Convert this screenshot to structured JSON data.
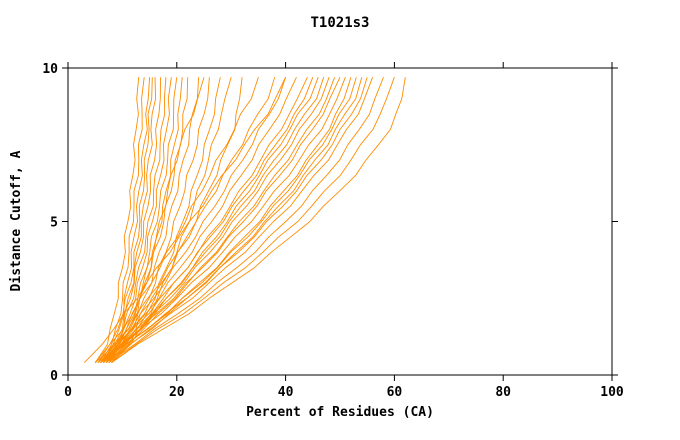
{
  "chart_data": {
    "type": "line",
    "title": "T1021s3",
    "xlabel": "Percent of Residues (CA)",
    "ylabel": "Distance Cutoff, A",
    "xlim": [
      0,
      100
    ],
    "ylim": [
      0,
      10
    ],
    "x_ticks": [
      0,
      20,
      40,
      60,
      80,
      100
    ],
    "y_ticks": [
      0,
      5,
      10
    ],
    "grid": false,
    "legend": "none",
    "line_color": "#ff8c00",
    "axis_color": "#000000",
    "background": "#ffffff",
    "y_cutoffs": [
      0.4,
      1,
      1.5,
      2,
      2.5,
      3,
      3.5,
      4,
      4.5,
      5,
      5.5,
      6,
      6.5,
      7,
      7.5,
      8,
      8.5,
      9,
      9.7
    ],
    "series": [
      [
        5,
        7,
        8,
        8.5,
        9,
        9.5,
        10,
        10.3,
        10.6,
        11,
        11.3,
        11.6,
        11.9,
        12.1,
        12.3,
        12.5,
        12.7,
        12.9,
        13
      ],
      [
        6,
        8,
        9,
        9.5,
        10,
        10.4,
        10.8,
        11.2,
        11.5,
        11.8,
        12.1,
        12.4,
        12.7,
        13,
        13.2,
        13.4,
        13.6,
        13.8,
        14
      ],
      [
        6.5,
        8.5,
        9.5,
        10,
        10.5,
        11,
        11.4,
        11.8,
        12.2,
        12.5,
        12.8,
        13.1,
        13.4,
        13.7,
        14,
        14.3,
        14.5,
        14.8,
        15
      ],
      [
        5.5,
        8,
        9,
        10,
        10.8,
        11.4,
        12,
        12.4,
        12.8,
        13.1,
        13.4,
        13.7,
        14,
        14.3,
        14.5,
        14.8,
        15,
        15.2,
        15.5
      ],
      [
        7,
        9,
        10,
        10.6,
        11.2,
        11.8,
        12.3,
        12.8,
        13.2,
        13.6,
        14,
        14.3,
        14.6,
        14.9,
        15.2,
        15.4,
        15.6,
        15.8,
        16
      ],
      [
        6,
        8.5,
        9.8,
        10.6,
        11.4,
        12,
        12.6,
        13.2,
        13.7,
        14.2,
        14.6,
        15,
        15.4,
        15.8,
        16.1,
        16.4,
        16.6,
        16.8,
        17
      ],
      [
        7,
        9,
        10.2,
        11,
        11.8,
        12.5,
        13.2,
        13.8,
        14.4,
        14.9,
        15.4,
        15.8,
        16.2,
        16.6,
        17,
        17.3,
        17.5,
        17.8,
        18
      ],
      [
        6.5,
        9,
        10.5,
        11.4,
        12.2,
        13,
        13.7,
        14.3,
        14.9,
        15.5,
        16,
        16.5,
        17,
        17.4,
        17.8,
        18.1,
        18.4,
        18.7,
        19
      ],
      [
        7,
        9.5,
        11,
        12,
        12.8,
        13.6,
        14.3,
        15,
        15.6,
        16.2,
        16.8,
        17.3,
        17.8,
        18.3,
        18.7,
        19.1,
        19.4,
        19.7,
        20
      ],
      [
        7.5,
        10,
        11.5,
        12.5,
        13.4,
        14.2,
        15,
        15.7,
        16.4,
        17,
        17.6,
        18.1,
        18.6,
        19.1,
        19.6,
        20,
        20.4,
        20.7,
        21
      ],
      [
        6,
        9,
        11,
        12.3,
        13.4,
        14.3,
        15.2,
        16,
        16.8,
        17.5,
        18.2,
        18.8,
        19.4,
        20,
        20.5,
        21,
        21.4,
        21.7,
        22
      ],
      [
        7,
        10,
        11.8,
        13,
        14.1,
        15.1,
        16,
        16.9,
        17.7,
        18.5,
        19.2,
        19.9,
        20.6,
        21.3,
        21.9,
        22.5,
        23,
        23.5,
        24
      ],
      [
        7.5,
        10.5,
        12.3,
        13.6,
        14.8,
        15.9,
        16.9,
        17.9,
        18.8,
        19.7,
        20.5,
        21.3,
        22.1,
        22.9,
        23.6,
        24.3,
        24.9,
        25.5,
        26
      ],
      [
        6,
        9,
        10.8,
        12,
        13,
        13.9,
        14.7,
        15.5,
        16.3,
        17,
        17.7,
        18.4,
        19.1,
        19.8,
        20.7,
        21.7,
        22.8,
        23.9,
        25
      ],
      [
        8,
        11,
        13,
        14.5,
        15.8,
        17,
        18.1,
        19.2,
        20.2,
        21.1,
        22,
        22.9,
        23.7,
        24.5,
        25.3,
        26,
        26.7,
        27.4,
        28
      ],
      [
        8,
        11.5,
        13.5,
        15,
        16.4,
        17.7,
        18.9,
        20,
        21.1,
        22.1,
        23.1,
        24,
        24.9,
        25.8,
        26.6,
        27.4,
        28.2,
        29.1,
        30
      ],
      [
        6,
        9.5,
        11.8,
        13.8,
        15.6,
        17.3,
        18.9,
        20.4,
        21.9,
        23.3,
        24.6,
        25.9,
        27.1,
        28.3,
        29.4,
        30.4,
        31.1,
        31.6,
        32
      ],
      [
        5,
        8,
        10,
        11.8,
        13.5,
        15.2,
        16.8,
        18.4,
        20,
        21.5,
        23,
        24.5,
        26,
        27.5,
        29,
        30.5,
        32,
        33.5,
        35
      ],
      [
        5.5,
        8.5,
        10.8,
        12.8,
        14.8,
        16.7,
        18.5,
        20.3,
        22,
        23.7,
        25.4,
        27,
        28.6,
        30.2,
        31.8,
        33.4,
        35,
        36.5,
        38
      ],
      [
        6,
        9,
        11.5,
        13.6,
        15.7,
        17.7,
        19.6,
        21.5,
        23.3,
        25.1,
        26.9,
        28.6,
        30.3,
        32,
        33.7,
        35.3,
        36.9,
        38.5,
        40
      ],
      [
        3,
        6,
        8.5,
        10.5,
        12.5,
        14.5,
        16.5,
        18.5,
        20.5,
        22.5,
        24.5,
        26.5,
        28.5,
        30.5,
        32.5,
        34.5,
        36.5,
        38.2,
        40
      ],
      [
        6,
        9.5,
        12,
        14.3,
        16.5,
        18.6,
        20.6,
        22.6,
        24.5,
        26.4,
        28.2,
        30,
        31.8,
        33.6,
        35.3,
        37,
        38.7,
        40.4,
        42
      ],
      [
        6.5,
        10,
        12.8,
        15.2,
        17.5,
        19.7,
        21.8,
        23.9,
        25.9,
        27.9,
        29.8,
        31.7,
        33.6,
        35.4,
        37.2,
        39,
        40.7,
        42.4,
        44
      ],
      [
        5,
        9,
        12,
        14.6,
        17.1,
        19.5,
        21.8,
        24,
        26.2,
        28.3,
        30.4,
        32.4,
        34.4,
        36.3,
        38.2,
        40,
        41.8,
        43.5,
        45
      ],
      [
        7,
        10.5,
        13.4,
        15.9,
        18.3,
        20.6,
        22.8,
        25,
        27.1,
        29.2,
        31.2,
        33.2,
        35.1,
        37,
        38.9,
        40.7,
        42.5,
        44.3,
        46
      ],
      [
        6,
        10,
        13,
        15.7,
        18.2,
        20.7,
        23.1,
        25.4,
        27.6,
        29.8,
        31.9,
        34,
        36,
        38,
        39.9,
        41.8,
        43.6,
        45.4,
        47
      ],
      [
        6.5,
        10.2,
        13.3,
        16,
        18.7,
        21.2,
        23.6,
        26,
        28.3,
        30.5,
        32.7,
        34.8,
        36.9,
        38.9,
        40.9,
        42.8,
        44.6,
        46.4,
        48
      ],
      [
        7,
        10.8,
        14,
        16.8,
        19.5,
        22.1,
        24.6,
        27,
        29.4,
        31.7,
        33.9,
        36.1,
        38.2,
        40.2,
        42.2,
        44.1,
        45.9,
        47.6,
        49
      ],
      [
        5.5,
        9.5,
        13,
        16.2,
        19.2,
        22,
        24.7,
        27.3,
        29.8,
        32.2,
        34.5,
        36.7,
        38.9,
        41,
        43,
        44.9,
        46.7,
        48.4,
        50
      ],
      [
        6,
        10,
        13.6,
        16.9,
        20,
        22.9,
        25.7,
        28.4,
        31,
        33.5,
        35.9,
        38.2,
        40.4,
        42.5,
        44.5,
        46.4,
        48.1,
        49.7,
        51
      ],
      [
        7,
        11,
        14.6,
        18,
        21.2,
        24.2,
        27.1,
        29.9,
        32.5,
        35,
        37.4,
        39.7,
        41.9,
        44,
        46,
        47.8,
        49.4,
        50.8,
        52
      ],
      [
        6.5,
        10.8,
        14.5,
        18,
        21.3,
        24.4,
        27.4,
        30.2,
        32.9,
        35.5,
        38,
        40.3,
        42.5,
        44.6,
        46.6,
        48.4,
        50.1,
        51.6,
        53
      ],
      [
        7.5,
        11.5,
        15.2,
        18.7,
        22,
        25.1,
        28.1,
        31,
        33.7,
        36.3,
        38.8,
        41.2,
        43.4,
        45.5,
        47.5,
        49.3,
        51,
        52.6,
        54
      ],
      [
        6,
        10.5,
        14.5,
        18.2,
        21.7,
        25,
        28.2,
        31.2,
        34.1,
        36.8,
        39.4,
        41.9,
        44.2,
        46.4,
        48.4,
        50.3,
        52,
        53.6,
        55
      ],
      [
        7,
        11.2,
        15.2,
        19,
        22.6,
        26,
        29.2,
        32.3,
        35.2,
        38,
        40.6,
        43.1,
        45.4,
        47.6,
        49.6,
        51.4,
        53.1,
        54.6,
        56
      ],
      [
        7.5,
        12,
        16.2,
        20.2,
        24,
        27.6,
        31,
        34.2,
        37.2,
        40,
        42.7,
        45.2,
        47.5,
        49.7,
        51.7,
        53.5,
        55.2,
        56.7,
        58
      ],
      [
        8,
        12.5,
        16.8,
        21,
        25,
        28.8,
        32.4,
        35.8,
        39,
        42,
        44.8,
        47.4,
        49.8,
        52,
        54,
        55.8,
        57.4,
        58.8,
        60
      ],
      [
        8,
        13,
        17.6,
        22,
        26.2,
        30.2,
        34,
        37.6,
        41,
        44.2,
        47.2,
        50,
        52.6,
        55,
        57.1,
        59,
        60.5,
        61.4,
        62
      ]
    ]
  }
}
